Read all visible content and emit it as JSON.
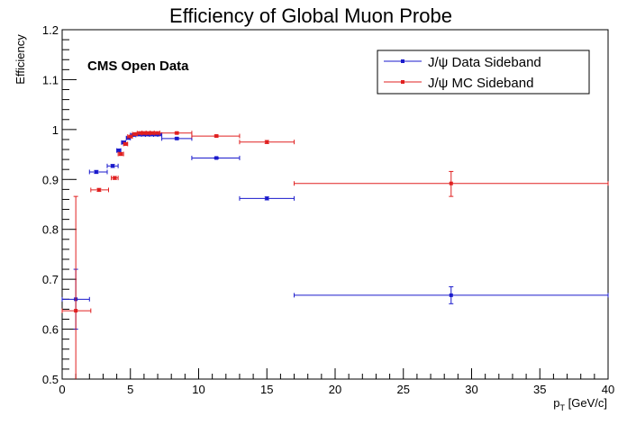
{
  "chart_data": {
    "type": "scatter",
    "title": "Efficiency of Global Muon Probe",
    "ylabel": "Efficiency",
    "xlabel_main": "p",
    "xlabel_sub": "T",
    "xlabel_unit": " [GeV/c]",
    "annotation": "CMS Open Data",
    "xlim": [
      0,
      40
    ],
    "ylim": [
      0.5,
      1.2
    ],
    "x_ticks": [
      0,
      5,
      10,
      15,
      20,
      25,
      30,
      35,
      40
    ],
    "y_ticks": [
      0.5,
      0.6,
      0.7,
      0.8,
      0.9,
      1.0,
      1.1,
      1.2
    ],
    "y_tick_labels": [
      "0.5",
      "0.6",
      "0.7",
      "0.8",
      "0.9",
      "1",
      "1.1",
      "1.2"
    ],
    "grid": false,
    "legend_position": "top-right",
    "series": [
      {
        "name": "J/ψ Data Sideband",
        "color": "#1a1acc",
        "points": [
          {
            "x": 1.0,
            "y": 0.66,
            "xlo": 0.0,
            "xhi": 2.0,
            "ylo": 0.6,
            "yhi": 0.72
          },
          {
            "x": 2.5,
            "y": 0.915,
            "xlo": 2.0,
            "xhi": 3.3,
            "ylo": 0.912,
            "yhi": 0.918
          },
          {
            "x": 3.7,
            "y": 0.927,
            "xlo": 3.3,
            "xhi": 4.1,
            "ylo": 0.924,
            "yhi": 0.93
          },
          {
            "x": 4.15,
            "y": 0.958,
            "xlo": 4.0,
            "xhi": 4.3,
            "ylo": 0.955,
            "yhi": 0.961
          },
          {
            "x": 4.5,
            "y": 0.974,
            "xlo": 4.35,
            "xhi": 4.65,
            "ylo": 0.972,
            "yhi": 0.977
          },
          {
            "x": 4.85,
            "y": 0.983,
            "xlo": 4.7,
            "xhi": 5.0,
            "ylo": 0.981,
            "yhi": 0.985
          },
          {
            "x": 5.2,
            "y": 0.989,
            "xlo": 5.0,
            "xhi": 5.4,
            "ylo": 0.987,
            "yhi": 0.991
          },
          {
            "x": 5.6,
            "y": 0.99,
            "xlo": 5.4,
            "xhi": 5.8,
            "ylo": 0.988,
            "yhi": 0.992
          },
          {
            "x": 5.95,
            "y": 0.99,
            "xlo": 5.8,
            "xhi": 6.1,
            "ylo": 0.988,
            "yhi": 0.992
          },
          {
            "x": 6.25,
            "y": 0.99,
            "xlo": 6.1,
            "xhi": 6.4,
            "ylo": 0.988,
            "yhi": 0.992
          },
          {
            "x": 6.55,
            "y": 0.99,
            "xlo": 6.4,
            "xhi": 6.7,
            "ylo": 0.988,
            "yhi": 0.992
          },
          {
            "x": 6.85,
            "y": 0.99,
            "xlo": 6.7,
            "xhi": 7.0,
            "ylo": 0.988,
            "yhi": 0.992
          },
          {
            "x": 7.1,
            "y": 0.99,
            "xlo": 7.0,
            "xhi": 7.3,
            "ylo": 0.988,
            "yhi": 0.992
          },
          {
            "x": 8.4,
            "y": 0.982,
            "xlo": 7.3,
            "xhi": 9.5,
            "ylo": 0.98,
            "yhi": 0.984
          },
          {
            "x": 11.3,
            "y": 0.943,
            "xlo": 9.5,
            "xhi": 13.0,
            "ylo": 0.941,
            "yhi": 0.945
          },
          {
            "x": 15.0,
            "y": 0.862,
            "xlo": 13.0,
            "xhi": 17.0,
            "ylo": 0.859,
            "yhi": 0.865
          },
          {
            "x": 28.5,
            "y": 0.668,
            "xlo": 17.0,
            "xhi": 40.0,
            "ylo": 0.651,
            "yhi": 0.685
          }
        ]
      },
      {
        "name": "J/ψ MC Sideband",
        "color": "#e02020",
        "points": [
          {
            "x": 1.0,
            "y": 0.637,
            "xlo": 0.0,
            "xhi": 2.1,
            "ylo": 0.5,
            "yhi": 0.866
          },
          {
            "x": 2.7,
            "y": 0.879,
            "xlo": 2.1,
            "xhi": 3.4,
            "ylo": 0.876,
            "yhi": 0.882
          },
          {
            "x": 3.85,
            "y": 0.903,
            "xlo": 3.6,
            "xhi": 4.1,
            "ylo": 0.9,
            "yhi": 0.906
          },
          {
            "x": 4.3,
            "y": 0.951,
            "xlo": 4.1,
            "xhi": 4.5,
            "ylo": 0.948,
            "yhi": 0.954
          },
          {
            "x": 4.65,
            "y": 0.971,
            "xlo": 4.5,
            "xhi": 4.8,
            "ylo": 0.969,
            "yhi": 0.973
          },
          {
            "x": 5.0,
            "y": 0.986,
            "xlo": 4.8,
            "xhi": 5.15,
            "ylo": 0.984,
            "yhi": 0.988
          },
          {
            "x": 5.35,
            "y": 0.991,
            "xlo": 5.15,
            "xhi": 5.5,
            "ylo": 0.989,
            "yhi": 0.993
          },
          {
            "x": 5.7,
            "y": 0.993,
            "xlo": 5.5,
            "xhi": 5.85,
            "ylo": 0.991,
            "yhi": 0.995
          },
          {
            "x": 6.0,
            "y": 0.993,
            "xlo": 5.85,
            "xhi": 6.15,
            "ylo": 0.991,
            "yhi": 0.995
          },
          {
            "x": 6.3,
            "y": 0.993,
            "xlo": 6.15,
            "xhi": 6.45,
            "ylo": 0.991,
            "yhi": 0.995
          },
          {
            "x": 6.6,
            "y": 0.993,
            "xlo": 6.45,
            "xhi": 6.75,
            "ylo": 0.991,
            "yhi": 0.995
          },
          {
            "x": 6.95,
            "y": 0.993,
            "xlo": 6.75,
            "xhi": 7.15,
            "ylo": 0.991,
            "yhi": 0.995
          },
          {
            "x": 8.4,
            "y": 0.993,
            "xlo": 7.15,
            "xhi": 9.5,
            "ylo": 0.991,
            "yhi": 0.995
          },
          {
            "x": 11.3,
            "y": 0.987,
            "xlo": 9.5,
            "xhi": 13.0,
            "ylo": 0.985,
            "yhi": 0.989
          },
          {
            "x": 15.0,
            "y": 0.975,
            "xlo": 13.0,
            "xhi": 17.0,
            "ylo": 0.972,
            "yhi": 0.978
          },
          {
            "x": 28.5,
            "y": 0.892,
            "xlo": 17.0,
            "xhi": 40.0,
            "ylo": 0.866,
            "yhi": 0.916
          }
        ]
      }
    ]
  }
}
